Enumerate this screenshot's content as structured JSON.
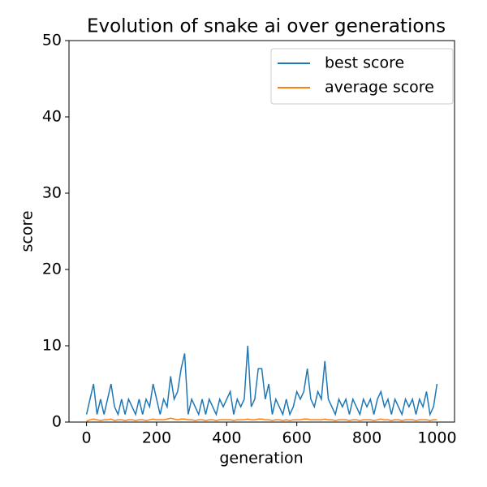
{
  "chart_data": {
    "type": "line",
    "title": "Evolution of snake ai over generations",
    "x_label": "generation",
    "y_label": "score",
    "x": [
      0,
      10,
      20,
      30,
      40,
      50,
      60,
      70,
      80,
      90,
      100,
      110,
      120,
      130,
      140,
      150,
      160,
      170,
      180,
      190,
      200,
      210,
      220,
      230,
      240,
      250,
      260,
      270,
      280,
      290,
      300,
      310,
      320,
      330,
      340,
      350,
      360,
      370,
      380,
      390,
      400,
      410,
      420,
      430,
      440,
      450,
      460,
      470,
      480,
      490,
      500,
      510,
      520,
      530,
      540,
      550,
      560,
      570,
      580,
      590,
      600,
      610,
      620,
      630,
      640,
      650,
      660,
      670,
      680,
      690,
      700,
      710,
      720,
      730,
      740,
      750,
      760,
      770,
      780,
      790,
      800,
      810,
      820,
      830,
      840,
      850,
      860,
      870,
      880,
      890,
      900,
      910,
      920,
      930,
      940,
      950,
      960,
      970,
      980,
      990,
      1000
    ],
    "series": [
      {
        "name": "best score",
        "color": "#1f77b4",
        "values": [
          1,
          3,
          5,
          1,
          3,
          1,
          3,
          5,
          2,
          1,
          3,
          1,
          3,
          2,
          1,
          3,
          1,
          3,
          2,
          5,
          3,
          1,
          3,
          2,
          6,
          3,
          4,
          7,
          9,
          1,
          3,
          2,
          1,
          3,
          1,
          3,
          2,
          1,
          3,
          2,
          3,
          4,
          1,
          3,
          2,
          3,
          10,
          2,
          3,
          7,
          7,
          3,
          5,
          1,
          3,
          2,
          1,
          3,
          1,
          2,
          4,
          3,
          4,
          7,
          3,
          2,
          4,
          3,
          8,
          3,
          2,
          1,
          3,
          2,
          3,
          1,
          3,
          2,
          1,
          3,
          2,
          3,
          1,
          3,
          4,
          2,
          3,
          1,
          3,
          2,
          1,
          3,
          2,
          3,
          1,
          3,
          2,
          4,
          1,
          2,
          5
        ]
      },
      {
        "name": "average score",
        "color": "#ff7f0e",
        "values": [
          0.1,
          0.3,
          0.4,
          0.3,
          0.2,
          0.3,
          0.3,
          0.4,
          0.2,
          0.3,
          0.3,
          0.2,
          0.3,
          0.3,
          0.2,
          0.3,
          0.3,
          0.2,
          0.3,
          0.4,
          0.3,
          0.3,
          0.3,
          0.4,
          0.5,
          0.4,
          0.3,
          0.4,
          0.4,
          0.3,
          0.3,
          0.2,
          0.3,
          0.3,
          0.2,
          0.3,
          0.3,
          0.2,
          0.3,
          0.3,
          0.3,
          0.3,
          0.2,
          0.3,
          0.3,
          0.3,
          0.4,
          0.3,
          0.3,
          0.4,
          0.4,
          0.3,
          0.3,
          0.2,
          0.3,
          0.3,
          0.2,
          0.3,
          0.2,
          0.3,
          0.3,
          0.3,
          0.4,
          0.4,
          0.3,
          0.3,
          0.3,
          0.3,
          0.4,
          0.3,
          0.3,
          0.2,
          0.3,
          0.3,
          0.3,
          0.2,
          0.3,
          0.3,
          0.2,
          0.3,
          0.3,
          0.3,
          0.2,
          0.3,
          0.4,
          0.3,
          0.3,
          0.2,
          0.3,
          0.3,
          0.2,
          0.3,
          0.3,
          0.3,
          0.2,
          0.3,
          0.3,
          0.3,
          0.2,
          0.3,
          0.3
        ]
      }
    ],
    "xlim": [
      -50,
      1050
    ],
    "xticks": [
      0,
      200,
      400,
      600,
      800,
      1000
    ],
    "ylim": [
      0,
      50
    ],
    "yticks": [
      0,
      10,
      20,
      30,
      40,
      50
    ],
    "legend": "upper right"
  }
}
